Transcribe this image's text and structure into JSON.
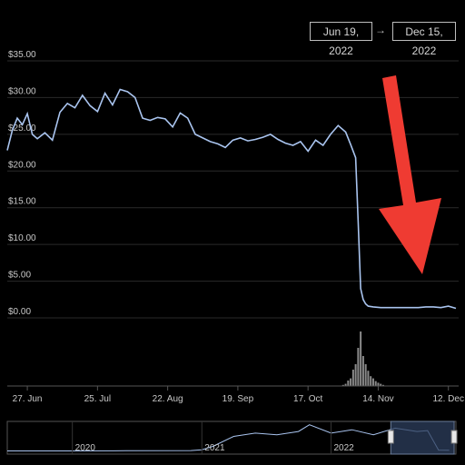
{
  "date_range": {
    "start": "Jun 19, 2022",
    "arrow": "→",
    "end": "Dec 15, 2022"
  },
  "colors": {
    "line": "#a9c4ef",
    "background": "#000000",
    "grid": "#2a2a2a",
    "volume": "#8a8a8a",
    "arrow": "#ef3b32",
    "navigator_window": "#2e3f5e"
  },
  "chart_data": [
    {
      "type": "line",
      "title": "",
      "xlabel": "",
      "ylabel": "",
      "ylim": [
        0,
        35
      ],
      "yticks": [
        "$0.00",
        "$5.00",
        "$10.00",
        "$15.00",
        "$20.00",
        "$25.00",
        "$30.00",
        "$35.00"
      ],
      "xticks": [
        "27. Jun",
        "25. Jul",
        "22. Aug",
        "19. Sep",
        "17. Oct",
        "14. Nov",
        "12. Dec"
      ],
      "x": [
        "2022-06-19",
        "2022-06-21",
        "2022-06-23",
        "2022-06-25",
        "2022-06-27",
        "2022-06-29",
        "2022-07-01",
        "2022-07-04",
        "2022-07-07",
        "2022-07-10",
        "2022-07-13",
        "2022-07-16",
        "2022-07-19",
        "2022-07-22",
        "2022-07-25",
        "2022-07-28",
        "2022-07-31",
        "2022-08-03",
        "2022-08-06",
        "2022-08-09",
        "2022-08-12",
        "2022-08-15",
        "2022-08-18",
        "2022-08-21",
        "2022-08-24",
        "2022-08-27",
        "2022-08-30",
        "2022-09-02",
        "2022-09-05",
        "2022-09-08",
        "2022-09-11",
        "2022-09-14",
        "2022-09-17",
        "2022-09-20",
        "2022-09-23",
        "2022-09-26",
        "2022-09-29",
        "2022-10-02",
        "2022-10-05",
        "2022-10-08",
        "2022-10-11",
        "2022-10-14",
        "2022-10-17",
        "2022-10-20",
        "2022-10-23",
        "2022-10-26",
        "2022-10-29",
        "2022-11-01",
        "2022-11-03",
        "2022-11-05",
        "2022-11-06",
        "2022-11-07",
        "2022-11-08",
        "2022-11-09",
        "2022-11-10",
        "2022-11-12",
        "2022-11-15",
        "2022-11-18",
        "2022-11-21",
        "2022-11-24",
        "2022-11-27",
        "2022-11-30",
        "2022-12-03",
        "2022-12-06",
        "2022-12-09",
        "2022-12-12",
        "2022-12-15"
      ],
      "values": [
        22.8,
        25.5,
        27.2,
        26.3,
        27.8,
        25.0,
        24.4,
        25.2,
        24.2,
        28.0,
        29.2,
        28.6,
        30.3,
        28.9,
        28.1,
        30.6,
        29.0,
        31.1,
        30.8,
        30.0,
        27.2,
        26.9,
        27.3,
        27.1,
        26.0,
        27.9,
        27.2,
        25.0,
        24.5,
        24.0,
        23.7,
        23.2,
        24.2,
        24.5,
        24.1,
        24.3,
        24.6,
        25.0,
        24.3,
        23.8,
        23.5,
        24.0,
        22.7,
        24.2,
        23.5,
        25.0,
        26.2,
        25.3,
        23.6,
        21.8,
        13.0,
        4.0,
        2.5,
        1.9,
        1.6,
        1.5,
        1.4,
        1.4,
        1.4,
        1.4,
        1.4,
        1.4,
        1.5,
        1.5,
        1.4,
        1.6,
        1.3
      ]
    },
    {
      "type": "bar",
      "title": "",
      "xlabel": "",
      "ylabel": "",
      "x": [
        "2022-10-31",
        "2022-11-01",
        "2022-11-02",
        "2022-11-03",
        "2022-11-04",
        "2022-11-05",
        "2022-11-06",
        "2022-11-07",
        "2022-11-08",
        "2022-11-09",
        "2022-11-10",
        "2022-11-11",
        "2022-11-12",
        "2022-11-13",
        "2022-11-14",
        "2022-11-15",
        "2022-11-16"
      ],
      "values": [
        2,
        4,
        10,
        14,
        30,
        40,
        70,
        100,
        55,
        40,
        28,
        18,
        14,
        9,
        6,
        4,
        2
      ]
    },
    {
      "type": "area",
      "title": "",
      "xticks": [
        "2020",
        "2021",
        "2022"
      ],
      "x": [
        "2019-07",
        "2020-01",
        "2020-06",
        "2020-12",
        "2021-01",
        "2021-02",
        "2021-04",
        "2021-06",
        "2021-08",
        "2021-10",
        "2021-11",
        "2022-01",
        "2022-03",
        "2022-05",
        "2022-07",
        "2022-09",
        "2022-10",
        "2022-11",
        "2022-12"
      ],
      "values": [
        0.5,
        0.6,
        0.8,
        1.0,
        2.0,
        6.0,
        18.0,
        22.0,
        20.0,
        24.0,
        32.0,
        22.0,
        26.0,
        20.0,
        28.0,
        24.0,
        25.0,
        1.5,
        1.3
      ],
      "selected_range": [
        "2022-06-19",
        "2022-12-15"
      ]
    }
  ]
}
